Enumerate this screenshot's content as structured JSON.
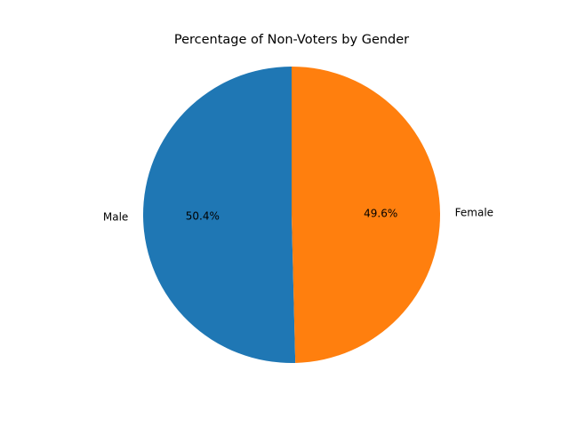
{
  "chart_data": {
    "type": "pie",
    "title": "Percentage of Non-Voters by Gender",
    "slices": [
      {
        "label": "Male",
        "value": 50.4,
        "pct_label": "50.4%",
        "color": "#1f77b4"
      },
      {
        "label": "Female",
        "value": 49.6,
        "pct_label": "49.6%",
        "color": "#ff7f0e"
      }
    ],
    "start_angle_deg": 90,
    "direction": "counterclockwise",
    "legend": "none"
  }
}
